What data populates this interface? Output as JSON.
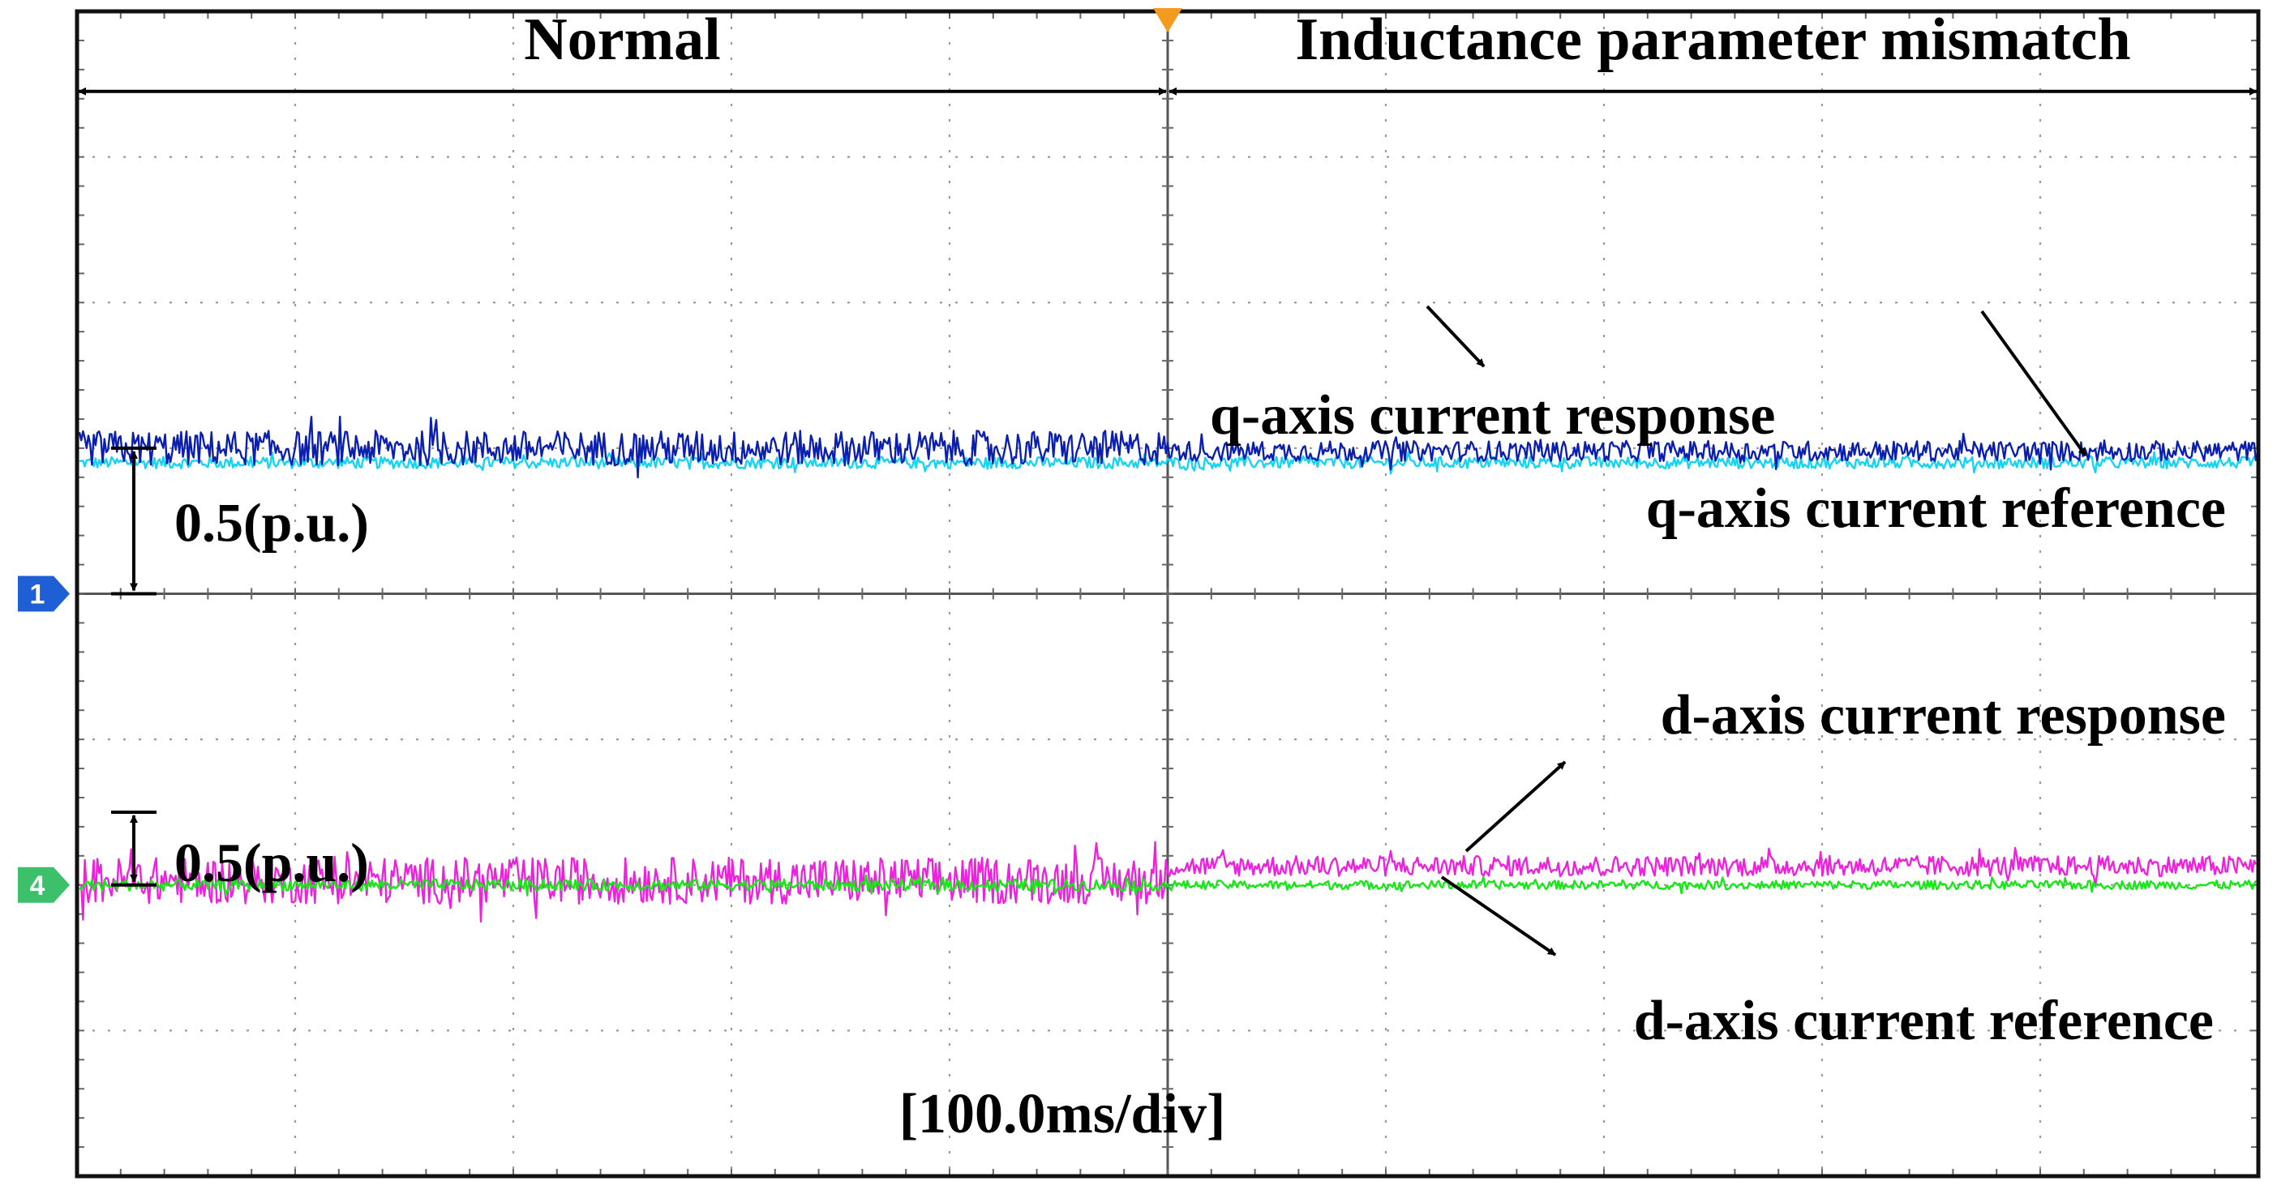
{
  "chart_data": {
    "type": "line",
    "title": "",
    "timebase": "[100.0ms/div]",
    "x_divisions": 10,
    "y_divisions": 8,
    "event_at_div": 5,
    "regions": [
      {
        "label": "Normal",
        "from_div": 0,
        "to_div": 5
      },
      {
        "label": "Inductance parameter mismatch",
        "from_div": 5,
        "to_div": 10
      }
    ],
    "channel_markers": [
      {
        "id": "1",
        "color": "#1f5fd6",
        "level_div": 4
      },
      {
        "id": "4",
        "color": "#3cc06a",
        "level_div": 2
      }
    ],
    "scale_bars": [
      {
        "label": "0.5(p.u.)",
        "from_level": 4,
        "to_level": 5
      },
      {
        "label": "0.5(p.u.)",
        "from_level": 2,
        "to_level": 2.5
      }
    ],
    "series": [
      {
        "name": "q-axis current response",
        "color": "#0a1fb0",
        "level_before": 5.0,
        "level_after": 4.98,
        "noise_before": 0.12,
        "noise_after": 0.07
      },
      {
        "name": "q-axis current reference",
        "color": "#14d4f2",
        "level_before": 4.9,
        "level_after": 4.9,
        "noise_before": 0.04,
        "noise_after": 0.04
      },
      {
        "name": "d-axis current response",
        "color": "#ee22dd",
        "level_before": 2.03,
        "level_after": 2.13,
        "noise_before": 0.16,
        "noise_after": 0.07
      },
      {
        "name": "d-axis current reference",
        "color": "#17e617",
        "level_before": 2.0,
        "level_after": 2.0,
        "noise_before": 0.04,
        "noise_after": 0.03
      }
    ],
    "annotations": [
      {
        "text": "q-axis current response",
        "series": 0
      },
      {
        "text": "q-axis current reference",
        "series": 1
      },
      {
        "text": "d-axis current response",
        "series": 2
      },
      {
        "text": "d-axis current reference",
        "series": 3
      }
    ]
  }
}
